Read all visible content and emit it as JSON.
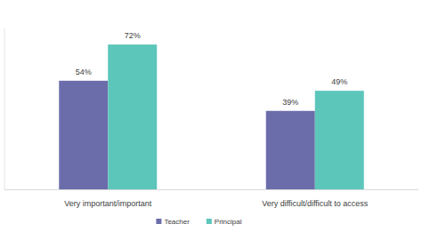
{
  "chart_data": {
    "type": "bar",
    "categories": [
      "Very important/important",
      "Very difficult/difficult to access"
    ],
    "series": [
      {
        "name": "Teacher",
        "color": "#6b6dab",
        "values": [
          54,
          39
        ],
        "value_labels": [
          "54%",
          "39%"
        ]
      },
      {
        "name": "Principal",
        "color": "#5dc6bb",
        "values": [
          72,
          49
        ],
        "value_labels": [
          "72%",
          "49%"
        ]
      }
    ],
    "ylim": [
      0,
      80
    ],
    "data_labels": true,
    "tick_labels": "x",
    "legend": "bottom",
    "grid": false
  }
}
